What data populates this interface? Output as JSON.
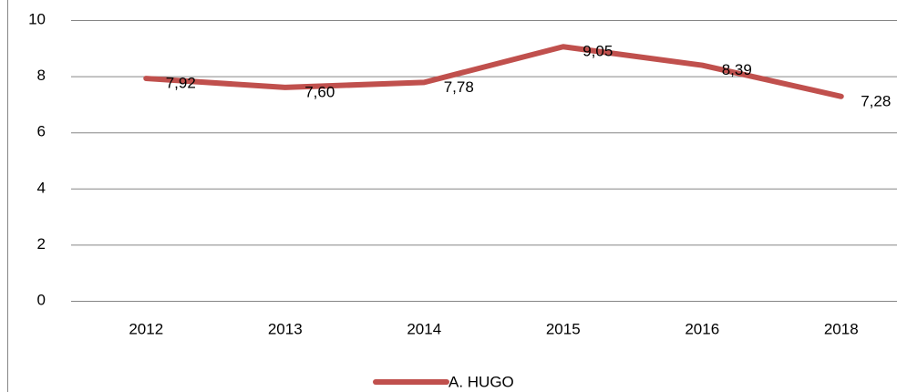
{
  "chart_data": {
    "type": "line",
    "categories": [
      "2012",
      "2013",
      "2014",
      "2015",
      "2016",
      "2018"
    ],
    "series": [
      {
        "name": "A. HUGO",
        "color": "#c0504d",
        "values": [
          7.92,
          7.6,
          7.78,
          9.05,
          8.39,
          7.28
        ],
        "value_labels": [
          "7,92",
          "7,60",
          "7,78",
          "9,05",
          "8,39",
          "7,28"
        ]
      }
    ],
    "ylim": [
      0,
      10
    ],
    "yticks": [
      0,
      2,
      4,
      6,
      8,
      10
    ],
    "grid": true,
    "legend": "bottom"
  }
}
